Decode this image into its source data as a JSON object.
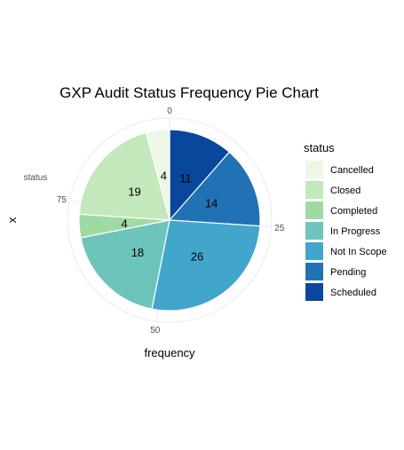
{
  "chart_data": {
    "type": "pie",
    "title": "GXP Audit Status Frequency Pie Chart",
    "xlabel": "frequency",
    "ylabel": "x",
    "y_tick_label": "status",
    "theta_ticks": [
      "0",
      "25",
      "50",
      "75"
    ],
    "theta_tick_values": [
      0,
      25,
      50,
      75
    ],
    "total": 96,
    "legend_title": "status",
    "legend_position": "right",
    "grid": true,
    "slices": [
      {
        "label": "Scheduled",
        "value": 11,
        "color": "#08479c"
      },
      {
        "label": "Pending",
        "value": 14,
        "color": "#2172b5"
      },
      {
        "label": "Not In Scope",
        "value": 26,
        "color": "#42a6cc"
      },
      {
        "label": "In Progress",
        "value": 18,
        "color": "#6cc4bb"
      },
      {
        "label": "Completed",
        "value": 4,
        "color": "#9edba3"
      },
      {
        "label": "Closed",
        "value": 19,
        "color": "#c3e8bb"
      },
      {
        "label": "Cancelled",
        "value": 4,
        "color": "#ecf8e5"
      }
    ],
    "legend": [
      "Cancelled",
      "Closed",
      "Completed",
      "In Progress",
      "Not In Scope",
      "Pending",
      "Scheduled"
    ]
  }
}
